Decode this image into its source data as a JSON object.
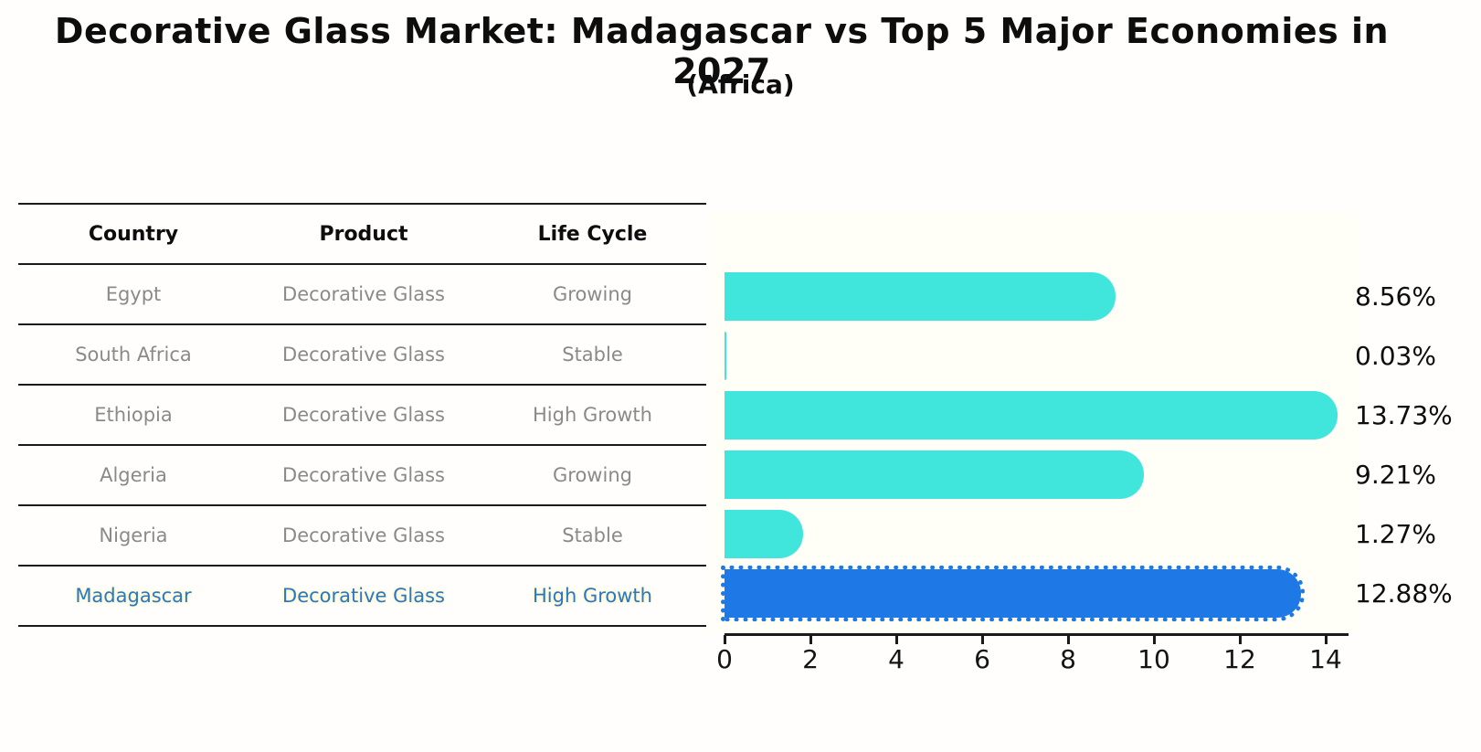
{
  "title": "Decorative Glass Market: Madagascar vs Top 5 Major Economies in 2027",
  "subtitle": "(Africa)",
  "table": {
    "headers": [
      "Country",
      "Product",
      "Life Cycle"
    ],
    "rows": [
      {
        "country": "Egypt",
        "product": "Decorative Glass",
        "life_cycle": "Growing",
        "highlight": false
      },
      {
        "country": "South Africa",
        "product": "Decorative Glass",
        "life_cycle": "Stable",
        "highlight": false
      },
      {
        "country": "Ethiopia",
        "product": "Decorative Glass",
        "life_cycle": "High Growth",
        "highlight": false
      },
      {
        "country": "Algeria",
        "product": "Decorative Glass",
        "life_cycle": "Growing",
        "highlight": false
      },
      {
        "country": "Nigeria",
        "product": "Decorative Glass",
        "life_cycle": "Stable",
        "highlight": false
      },
      {
        "country": "Madagascar",
        "product": "Decorative Glass",
        "life_cycle": "High Growth",
        "highlight": true
      }
    ]
  },
  "chart_data": {
    "type": "bar",
    "orientation": "horizontal",
    "title": "Decorative Glass Market: Madagascar vs Top 5 Major Economies in 2027 (Africa)",
    "categories": [
      "Egypt",
      "South Africa",
      "Ethiopia",
      "Algeria",
      "Nigeria",
      "Madagascar"
    ],
    "values": [
      8.56,
      0.03,
      13.73,
      9.21,
      1.27,
      12.88
    ],
    "value_labels": [
      "8.56%",
      "0.03%",
      "13.73%",
      "9.21%",
      "1.27%",
      "12.88%"
    ],
    "unit": "%",
    "xlabel": "",
    "ylabel": "",
    "xticks": [
      0,
      2,
      4,
      6,
      8,
      10,
      12,
      14
    ],
    "xlim": [
      0,
      14.5
    ],
    "grid": false,
    "legend": false,
    "highlight_index": 5,
    "colors": {
      "bar": "#40e6dc",
      "highlight_bar": "#1e79e6",
      "highlight_text": "#2678cf",
      "label_text": "#0d0d0d",
      "muted_text": "#8a8a8a"
    }
  }
}
